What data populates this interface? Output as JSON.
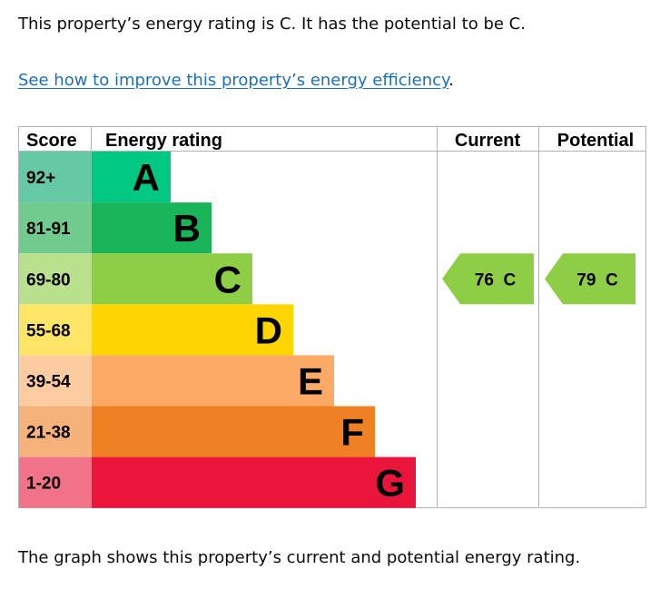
{
  "intro": "This property’s energy rating is C. It has the potential to be C.",
  "link": {
    "text": "See how to improve this property’s energy efficiency",
    "suffix": "."
  },
  "footer": "The graph shows this property’s current and potential energy rating.",
  "chart_data": {
    "type": "table",
    "headers": {
      "score": "Score",
      "rating": "Energy rating",
      "current": "Current",
      "potential": "Potential"
    },
    "bands": [
      {
        "score": "92+",
        "letter": "A",
        "color": "#00c781",
        "light": "#64c9a4"
      },
      {
        "score": "81-91",
        "letter": "B",
        "color": "#19b459",
        "light": "#72cb8e"
      },
      {
        "score": "69-80",
        "letter": "C",
        "color": "#8dce46",
        "light": "#b9e08c"
      },
      {
        "score": "55-68",
        "letter": "D",
        "color": "#ffd500",
        "light": "#ffe566"
      },
      {
        "score": "39-54",
        "letter": "E",
        "color": "#fcaa65",
        "light": "#fdcca0"
      },
      {
        "score": "21-38",
        "letter": "F",
        "color": "#ef8023",
        "light": "#f5b27b"
      },
      {
        "score": "1-20",
        "letter": "G",
        "color": "#e9153b",
        "light": "#f07389"
      }
    ],
    "current": {
      "value": 76,
      "letter": "C",
      "label": "76  C"
    },
    "potential": {
      "value": 79,
      "letter": "C",
      "label": "79  C"
    }
  }
}
